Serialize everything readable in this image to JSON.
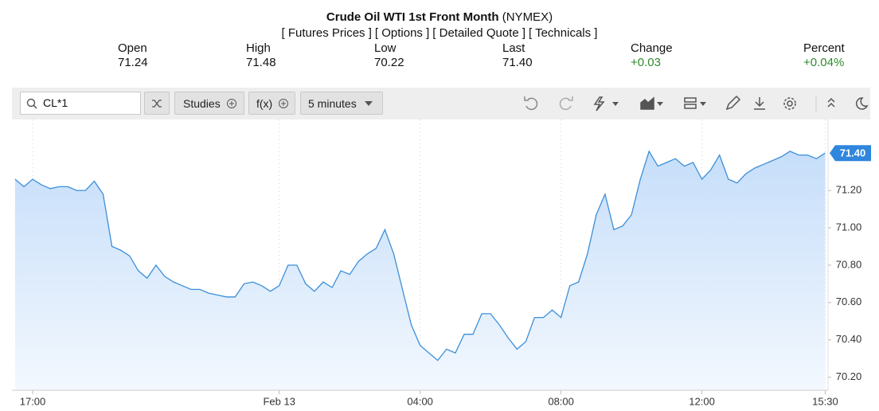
{
  "header": {
    "title": "Crude Oil WTI 1st Front Month",
    "exchange": "(NYMEX)",
    "links": [
      "[ Futures Prices ]",
      "[ Options ]",
      "[ Detailed Quote ]",
      "[ Technicals ]"
    ]
  },
  "quote": [
    {
      "label": "Open",
      "value": "71.24"
    },
    {
      "label": "High",
      "value": "71.48"
    },
    {
      "label": "Low",
      "value": "70.22"
    },
    {
      "label": "Last",
      "value": "71.40"
    },
    {
      "label": "Change",
      "value": "+0.03"
    },
    {
      "label": "Percent",
      "value": "+0.04%"
    }
  ],
  "toolbar": {
    "symbol": "CL*1",
    "buttons": [
      "Studies",
      "f(x)"
    ],
    "interval": "5 minutes"
  },
  "chart_data": {
    "type": "area",
    "categories": [
      null,
      null,
      "17:00",
      null,
      null,
      null,
      null,
      null,
      null,
      null,
      null,
      null,
      null,
      null,
      null,
      null,
      null,
      null,
      null,
      null,
      null,
      null,
      null,
      null,
      null,
      null,
      null,
      null,
      null,
      null,
      "Feb 13",
      null,
      null,
      null,
      null,
      null,
      null,
      null,
      null,
      null,
      null,
      null,
      null,
      null,
      null,
      null,
      "04:00",
      null,
      null,
      null,
      null,
      null,
      null,
      null,
      null,
      null,
      null,
      null,
      null,
      null,
      null,
      null,
      "08:00",
      null,
      null,
      null,
      null,
      null,
      null,
      null,
      null,
      null,
      null,
      null,
      null,
      null,
      null,
      null,
      "12:00",
      null,
      null,
      null,
      null,
      null,
      null,
      null,
      null,
      null,
      null,
      null,
      null,
      null,
      "15:30"
    ],
    "values": [
      71.26,
      71.22,
      71.26,
      71.23,
      71.21,
      71.22,
      71.22,
      71.2,
      71.2,
      71.25,
      71.18,
      70.9,
      70.88,
      70.85,
      70.77,
      70.73,
      70.8,
      70.74,
      70.71,
      70.69,
      70.67,
      70.67,
      70.65,
      70.64,
      70.63,
      70.63,
      70.7,
      70.71,
      70.69,
      70.66,
      70.69,
      70.8,
      70.8,
      70.7,
      70.66,
      70.71,
      70.68,
      70.77,
      70.75,
      70.82,
      70.86,
      70.89,
      70.99,
      70.86,
      70.67,
      70.48,
      70.37,
      70.33,
      70.29,
      70.35,
      70.33,
      70.43,
      70.43,
      70.54,
      70.54,
      70.48,
      70.41,
      70.35,
      70.39,
      70.52,
      70.52,
      70.56,
      70.52,
      70.69,
      70.71,
      70.86,
      71.07,
      71.18,
      70.99,
      71.01,
      71.07,
      71.26,
      71.41,
      71.33,
      71.35,
      71.37,
      71.33,
      71.35,
      71.26,
      71.31,
      71.39,
      71.26,
      71.24,
      71.29,
      71.32,
      71.34,
      71.36,
      71.38,
      71.41,
      71.39,
      71.39,
      71.37,
      71.4
    ],
    "color": "#3c8fd9",
    "ylim": [
      70.13,
      71.58
    ],
    "yticks": [
      {
        "value": 70.2,
        "label": "70.20"
      },
      {
        "value": 70.4,
        "label": "70.40"
      },
      {
        "value": 70.6,
        "label": "70.60"
      },
      {
        "value": 70.8,
        "label": "70.80"
      },
      {
        "value": 71.0,
        "label": "71.00"
      },
      {
        "value": 71.2,
        "label": "71.20"
      }
    ],
    "grid": "x",
    "price_badge": {
      "value": 71.4,
      "label": "71.40"
    }
  }
}
